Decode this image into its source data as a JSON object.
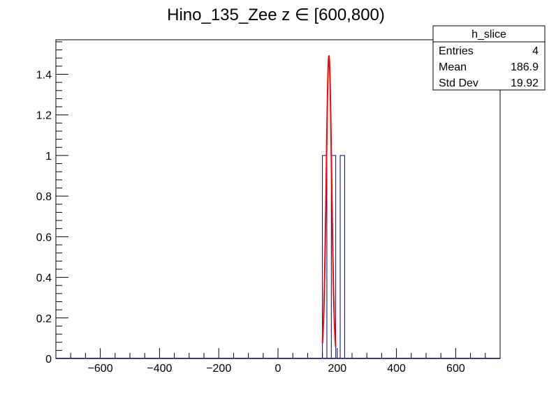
{
  "chart_data": {
    "type": "bar",
    "title": "Hino_135_Zee z  ∈ [600,800)",
    "xlabel": "",
    "ylabel": "",
    "xlim": [
      -750,
      750
    ],
    "ylim": [
      0,
      1.57
    ],
    "x_ticks": [
      -600,
      -400,
      -200,
      0,
      200,
      400,
      600
    ],
    "x_tick_labels": [
      "−600",
      "−400",
      "−200",
      "0",
      "200",
      "400",
      "600"
    ],
    "y_ticks": [
      0,
      0.2,
      0.4,
      0.6,
      0.8,
      1,
      1.2,
      1.4
    ],
    "y_tick_labels": [
      "0",
      "0.2",
      "0.4",
      "0.6",
      "0.8",
      "1",
      "1.2",
      "1.4"
    ],
    "histogram": {
      "name": "h_slice",
      "bins": [
        {
          "x_low": 150,
          "x_high": 165,
          "count": 1
        },
        {
          "x_low": 180,
          "x_high": 195,
          "count": 1
        },
        {
          "x_low": 210,
          "x_high": 225,
          "count": 1
        }
      ]
    },
    "fit": {
      "function": "gaus",
      "amplitude": 1.49,
      "mean": 172,
      "sigma": 9,
      "x_range": [
        150,
        195
      ]
    },
    "stats_box": {
      "title": "h_slice",
      "rows": [
        {
          "label": "Entries",
          "value": "4"
        },
        {
          "label": "Mean",
          "value": "186.9"
        },
        {
          "label": "Std Dev",
          "value": "19.92"
        }
      ]
    },
    "colors": {
      "histogram": "#000080",
      "fit": "#ff0000",
      "axis": "#000000"
    },
    "grid": false
  }
}
